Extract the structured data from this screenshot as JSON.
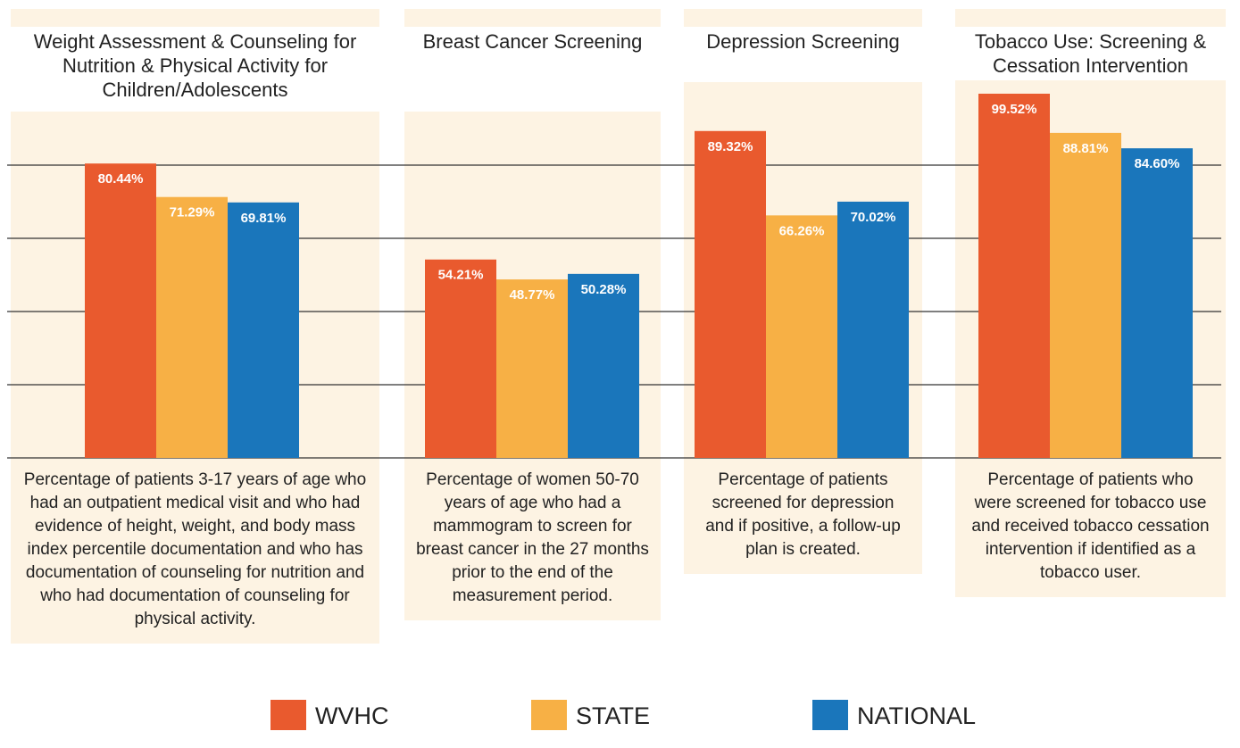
{
  "chart_data": {
    "type": "bar",
    "categories": [
      "Weight Assessment & Counseling for Nutrition & Physical Activity for Children/Adolescents",
      "Breast Cancer Screening",
      "Depression Screening",
      "Tobacco Use: Screening & Cessation Intervention"
    ],
    "descriptions": [
      "Percentage of patients 3-17 years of age who had an outpatient medical visit and who had evidence of height, weight, and body mass index percentile documentation and who has documentation of counseling  for nutrition and who had documentation of counseling for physical activity.",
      "Percentage of women 50-70 years of age who had a mammogram to screen for breast cancer in the 27 months prior to the end of the measurement period.",
      "Percentage of patients screened for depression and if positive, a follow-up plan is created.",
      "Percentage of patients who were screened for tobacco use and received tobacco cessation intervention if identified as a tobacco user."
    ],
    "series": [
      {
        "name": "WVHC",
        "color": "#e95a2e",
        "values": [
          80.44,
          54.21,
          89.32,
          99.52
        ],
        "value_labels": [
          "80.44%",
          "54.21%",
          "89.32%",
          "99.52%"
        ]
      },
      {
        "name": "STATE",
        "color": "#f7b045",
        "values": [
          71.29,
          48.77,
          66.26,
          88.81
        ],
        "value_labels": [
          "71.29%",
          "48.77%",
          "66.26%",
          "88.81%"
        ]
      },
      {
        "name": "NATIONAL",
        "color": "#1a76bb",
        "values": [
          69.81,
          50.28,
          70.02,
          84.6
        ],
        "value_labels": [
          "69.81%",
          "50.28%",
          "70.02%",
          "84.60%"
        ]
      }
    ],
    "ylim": [
      0,
      100
    ],
    "yticks": [
      0,
      20,
      40,
      60,
      80
    ],
    "grid": true
  }
}
